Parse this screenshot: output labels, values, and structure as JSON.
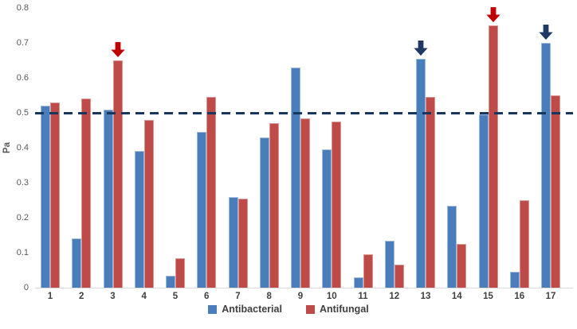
{
  "chart_data": {
    "type": "bar",
    "title": "",
    "xlabel": "",
    "ylabel": "Pa",
    "ylim": [
      0,
      0.8
    ],
    "yticks": [
      "0",
      "0.1",
      "0.2",
      "0.3",
      "0.4",
      "0.5",
      "0.6",
      "0.7",
      "0.8"
    ],
    "grid": false,
    "legend_position": "bottom",
    "categories": [
      "1",
      "2",
      "3",
      "4",
      "5",
      "6",
      "7",
      "8",
      "9",
      "10",
      "11",
      "12",
      "13",
      "14",
      "15",
      "16",
      "17"
    ],
    "series": [
      {
        "name": "Antibacterial",
        "color": "#4a7ebb",
        "border_color": "#9db9dc",
        "values": [
          0.52,
          0.14,
          0.51,
          0.39,
          0.035,
          0.445,
          0.26,
          0.43,
          0.63,
          0.395,
          0.03,
          0.135,
          0.655,
          0.235,
          0.495,
          0.045,
          0.7
        ]
      },
      {
        "name": "Antifungal",
        "color": "#be4b48",
        "border_color": "#d99693",
        "values": [
          0.53,
          0.54,
          0.65,
          0.48,
          0.085,
          0.545,
          0.255,
          0.47,
          0.485,
          0.475,
          0.095,
          0.065,
          0.545,
          0.125,
          0.75,
          0.25,
          0.55
        ]
      }
    ],
    "reference_line": {
      "value": 0.5,
      "style": "dashed",
      "color": "#17375e"
    },
    "annotations": [
      {
        "type": "down-arrow",
        "category": "3",
        "series": "Antifungal",
        "color": "#c00000"
      },
      {
        "type": "down-arrow",
        "category": "13",
        "series": "Antibacterial",
        "color": "#1f3864"
      },
      {
        "type": "down-arrow",
        "category": "15",
        "series": "Antifungal",
        "color": "#c00000"
      },
      {
        "type": "down-arrow",
        "category": "17",
        "series": "Antibacterial",
        "color": "#1f3864"
      }
    ]
  }
}
